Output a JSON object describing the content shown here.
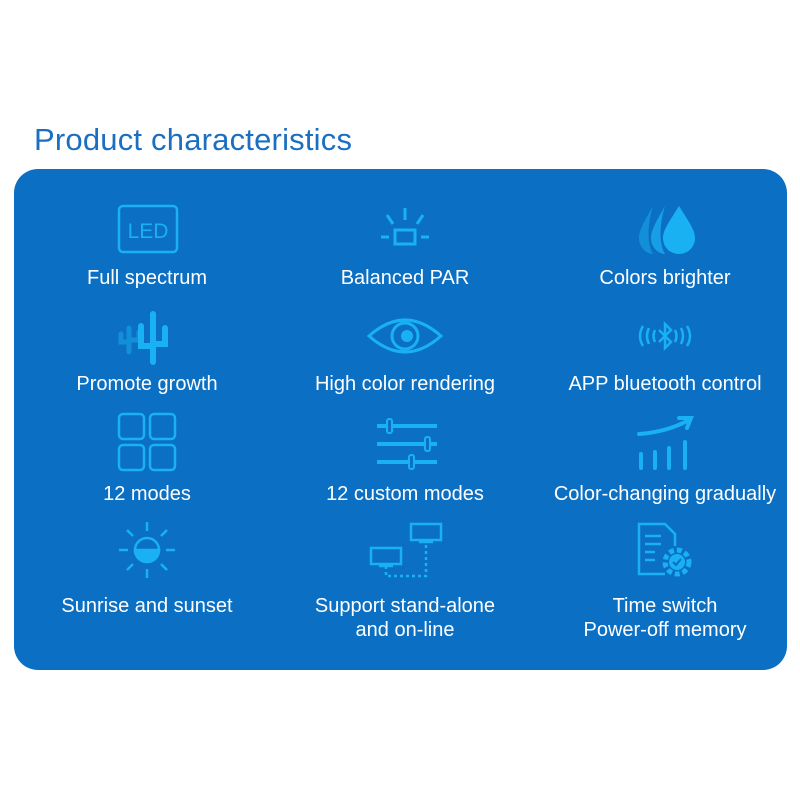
{
  "title": "Product characteristics",
  "colors": {
    "panel": "#0b6fc3",
    "icon": "#19b1f1",
    "title": "#1a6fc0",
    "label": "#ffffff"
  },
  "features": [
    {
      "icon": "led-icon",
      "icon_text": "LED",
      "label": "Full spectrum"
    },
    {
      "icon": "light-icon",
      "label": "Balanced PAR"
    },
    {
      "icon": "drops-icon",
      "label": "Colors brighter"
    },
    {
      "icon": "plant-icon",
      "label": "Promote growth"
    },
    {
      "icon": "eye-icon",
      "label": "High color rendering"
    },
    {
      "icon": "bluetooth-icon",
      "label": "APP bluetooth control"
    },
    {
      "icon": "grid-icon",
      "label": "12 modes"
    },
    {
      "icon": "sliders-icon",
      "label": "12 custom modes"
    },
    {
      "icon": "chart-up-icon",
      "label": "Color-changing gradually"
    },
    {
      "icon": "sunrise-icon",
      "label": "Sunrise and sunset"
    },
    {
      "icon": "network-icon",
      "label": "Support stand-alone",
      "label2": "and on-line"
    },
    {
      "icon": "document-gear-icon",
      "label": "Time switch",
      "label2": "Power-off memory"
    }
  ]
}
